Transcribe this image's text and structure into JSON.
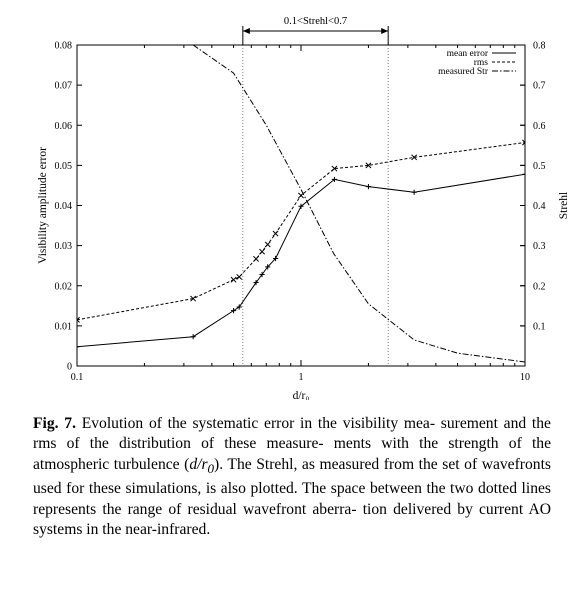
{
  "chart_data": {
    "type": "line",
    "xscale": "log",
    "xlim": [
      0.1,
      10
    ],
    "ylim": [
      0,
      0.08
    ],
    "y2lim": [
      0,
      0.8
    ],
    "xlabel": "d/r₀",
    "ylabel": "Visibility amplitude error",
    "y2label": "Strehl",
    "x_ticks": [
      "0.1",
      "1",
      "10"
    ],
    "y_ticks": [
      "0",
      "0.01",
      "0.02",
      "0.03",
      "0.04",
      "0.05",
      "0.06",
      "0.07",
      "0.08"
    ],
    "y2_ticks": [
      "0.1",
      "0.2",
      "0.3",
      "0.4",
      "0.5",
      "0.6",
      "0.7",
      "0.8"
    ],
    "legend_position": "top-right",
    "series": [
      {
        "name": "mean error",
        "axis": "left",
        "style": "solid",
        "marker": "plus",
        "x": [
          0.1,
          0.33,
          0.5,
          0.53,
          0.63,
          0.67,
          0.71,
          0.77,
          1.0,
          1.41,
          2.0,
          3.2,
          10.0
        ],
        "y": [
          0.0048,
          0.0073,
          0.0138,
          0.0147,
          0.0208,
          0.0228,
          0.0247,
          0.0268,
          0.0398,
          0.0465,
          0.0447,
          0.0433,
          0.0478
        ]
      },
      {
        "name": "rms",
        "axis": "left",
        "style": "dashed",
        "marker": "cross",
        "x": [
          0.1,
          0.33,
          0.5,
          0.53,
          0.63,
          0.67,
          0.71,
          0.77,
          1.0,
          1.41,
          2.0,
          3.2,
          10.0
        ],
        "y": [
          0.0115,
          0.0168,
          0.0215,
          0.0222,
          0.0267,
          0.0285,
          0.0303,
          0.033,
          0.0425,
          0.0492,
          0.05,
          0.052,
          0.0557
        ]
      },
      {
        "name": "measured Str",
        "axis": "right",
        "style": "dashdot",
        "marker": "none",
        "x": [
          0.33,
          0.5,
          0.7,
          1.0,
          1.4,
          2.0,
          3.2,
          5.0,
          10.0
        ],
        "y": [
          0.8,
          0.73,
          0.6,
          0.44,
          0.28,
          0.155,
          0.065,
          0.032,
          0.01
        ]
      }
    ],
    "vlines": [
      0.55,
      2.45
    ],
    "range_annotation": {
      "label": "0.1<Strehl<0.7",
      "from": 0.55,
      "to": 2.45
    }
  },
  "caption": {
    "label": "Fig. 7.",
    "lines": [
      "Evolution of the systematic error in the visibility mea-",
      "surement and the rms of the distribution of these measure-",
      "ments with the strength of the atmospheric turbulence (",
      "d/r",
      "0",
      ").",
      "The Strehl, as measured from the set of wavefronts used for",
      "these simulations, is also plotted. The space between the two",
      "dotted lines represents the range of residual wavefront aberra-",
      "tion delivered by current AO systems in the near-infrared."
    ]
  }
}
